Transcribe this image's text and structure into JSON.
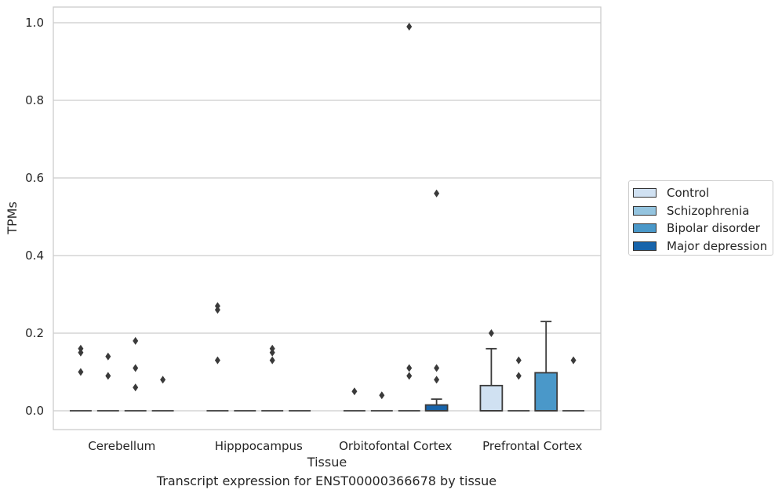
{
  "chart_data": {
    "type": "box",
    "title": "",
    "caption": "Transcript expression for ENST00000366678 by tissue",
    "xlabel": "Tissue",
    "ylabel": "TPMs",
    "ylim": [
      -0.05,
      1.04
    ],
    "yticks": [
      0.0,
      0.2,
      0.4,
      0.6,
      0.8,
      1.0
    ],
    "ytick_labels": [
      "0.0",
      "0.2",
      "0.4",
      "0.6",
      "0.8",
      "1.0"
    ],
    "grid": "horizontal",
    "legend_position": "right",
    "categories": [
      "Cerebellum",
      "Hipppocampus",
      "Orbitofontal Cortex",
      "Prefrontal Cortex"
    ],
    "series": [
      {
        "name": "Control",
        "color": "#d0e1f2",
        "boxes": [
          {
            "q1": 0,
            "median": 0,
            "q3": 0,
            "whisker_low": 0,
            "whisker_high": 0,
            "outliers": [
              0.16,
              0.15,
              0.1
            ]
          },
          {
            "q1": 0,
            "median": 0,
            "q3": 0,
            "whisker_low": 0,
            "whisker_high": 0,
            "outliers": [
              0.27,
              0.26,
              0.13
            ]
          },
          {
            "q1": 0,
            "median": 0,
            "q3": 0,
            "whisker_low": 0,
            "whisker_high": 0,
            "outliers": [
              0.05
            ]
          },
          {
            "q1": 0,
            "median": 0,
            "q3": 0.065,
            "whisker_low": 0,
            "whisker_high": 0.16,
            "outliers": [
              0.2
            ]
          }
        ]
      },
      {
        "name": "Schizophrenia",
        "color": "#94c4df",
        "boxes": [
          {
            "q1": 0,
            "median": 0,
            "q3": 0,
            "whisker_low": 0,
            "whisker_high": 0,
            "outliers": [
              0.14,
              0.09
            ]
          },
          {
            "q1": 0,
            "median": 0,
            "q3": 0,
            "whisker_low": 0,
            "whisker_high": 0,
            "outliers": []
          },
          {
            "q1": 0,
            "median": 0,
            "q3": 0,
            "whisker_low": 0,
            "whisker_high": 0,
            "outliers": [
              0.04
            ]
          },
          {
            "q1": 0,
            "median": 0,
            "q3": 0,
            "whisker_low": 0,
            "whisker_high": 0,
            "outliers": [
              0.13,
              0.09
            ]
          }
        ]
      },
      {
        "name": "Bipolar disorder",
        "color": "#4a98c9",
        "boxes": [
          {
            "q1": 0,
            "median": 0,
            "q3": 0,
            "whisker_low": 0,
            "whisker_high": 0,
            "outliers": [
              0.18,
              0.11,
              0.06
            ]
          },
          {
            "q1": 0,
            "median": 0,
            "q3": 0,
            "whisker_low": 0,
            "whisker_high": 0,
            "outliers": [
              0.16,
              0.15,
              0.13
            ]
          },
          {
            "q1": 0,
            "median": 0,
            "q3": 0,
            "whisker_low": 0,
            "whisker_high": 0,
            "outliers": [
              0.11,
              0.09,
              0.99
            ]
          },
          {
            "q1": 0,
            "median": 0,
            "q3": 0.098,
            "whisker_low": 0,
            "whisker_high": 0.23,
            "outliers": []
          }
        ]
      },
      {
        "name": "Major depression",
        "color": "#1764ab",
        "boxes": [
          {
            "q1": 0,
            "median": 0,
            "q3": 0,
            "whisker_low": 0,
            "whisker_high": 0,
            "outliers": [
              0.08
            ]
          },
          {
            "q1": 0,
            "median": 0,
            "q3": 0,
            "whisker_low": 0,
            "whisker_high": 0,
            "outliers": []
          },
          {
            "q1": 0,
            "median": 0,
            "q3": 0.015,
            "whisker_low": 0,
            "whisker_high": 0.03,
            "outliers": [
              0.11,
              0.08,
              0.56
            ]
          },
          {
            "q1": 0,
            "median": 0,
            "q3": 0,
            "whisker_low": 0,
            "whisker_high": 0,
            "outliers": [
              0.13
            ]
          }
        ]
      }
    ]
  }
}
